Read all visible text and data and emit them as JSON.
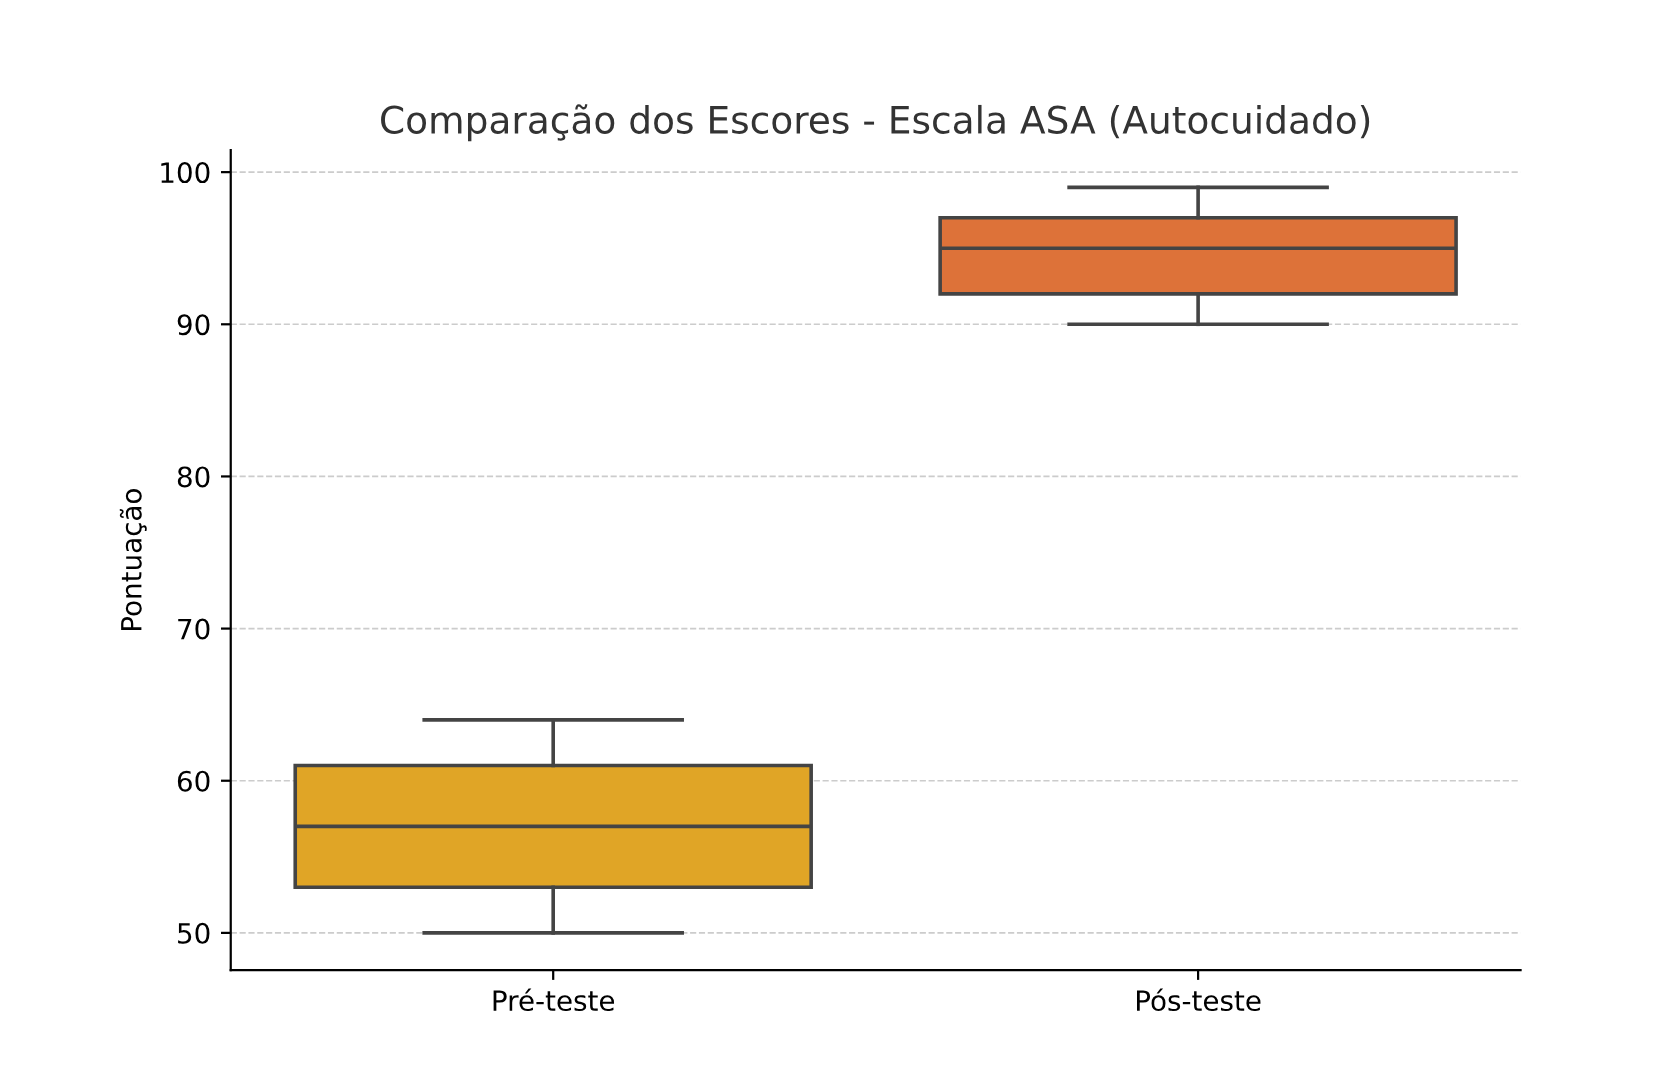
{
  "chart_data": {
    "type": "box",
    "title": "Comparação dos Escores - Escala ASA (Autocuidado)",
    "ylabel": "Pontuação",
    "categories": [
      "Pré-teste",
      "Pós-teste"
    ],
    "boxes": [
      {
        "low": 50,
        "q1": 53,
        "median": 57,
        "q3": 61,
        "high": 64
      },
      {
        "low": 90,
        "q1": 92,
        "median": 95,
        "q3": 97,
        "high": 99
      }
    ],
    "colors": [
      "#e0a526",
      "#dd7239"
    ],
    "ylim": [
      47.55,
      101.45
    ],
    "yticks": [
      50,
      60,
      70,
      80,
      90,
      100
    ],
    "grid": "y"
  }
}
